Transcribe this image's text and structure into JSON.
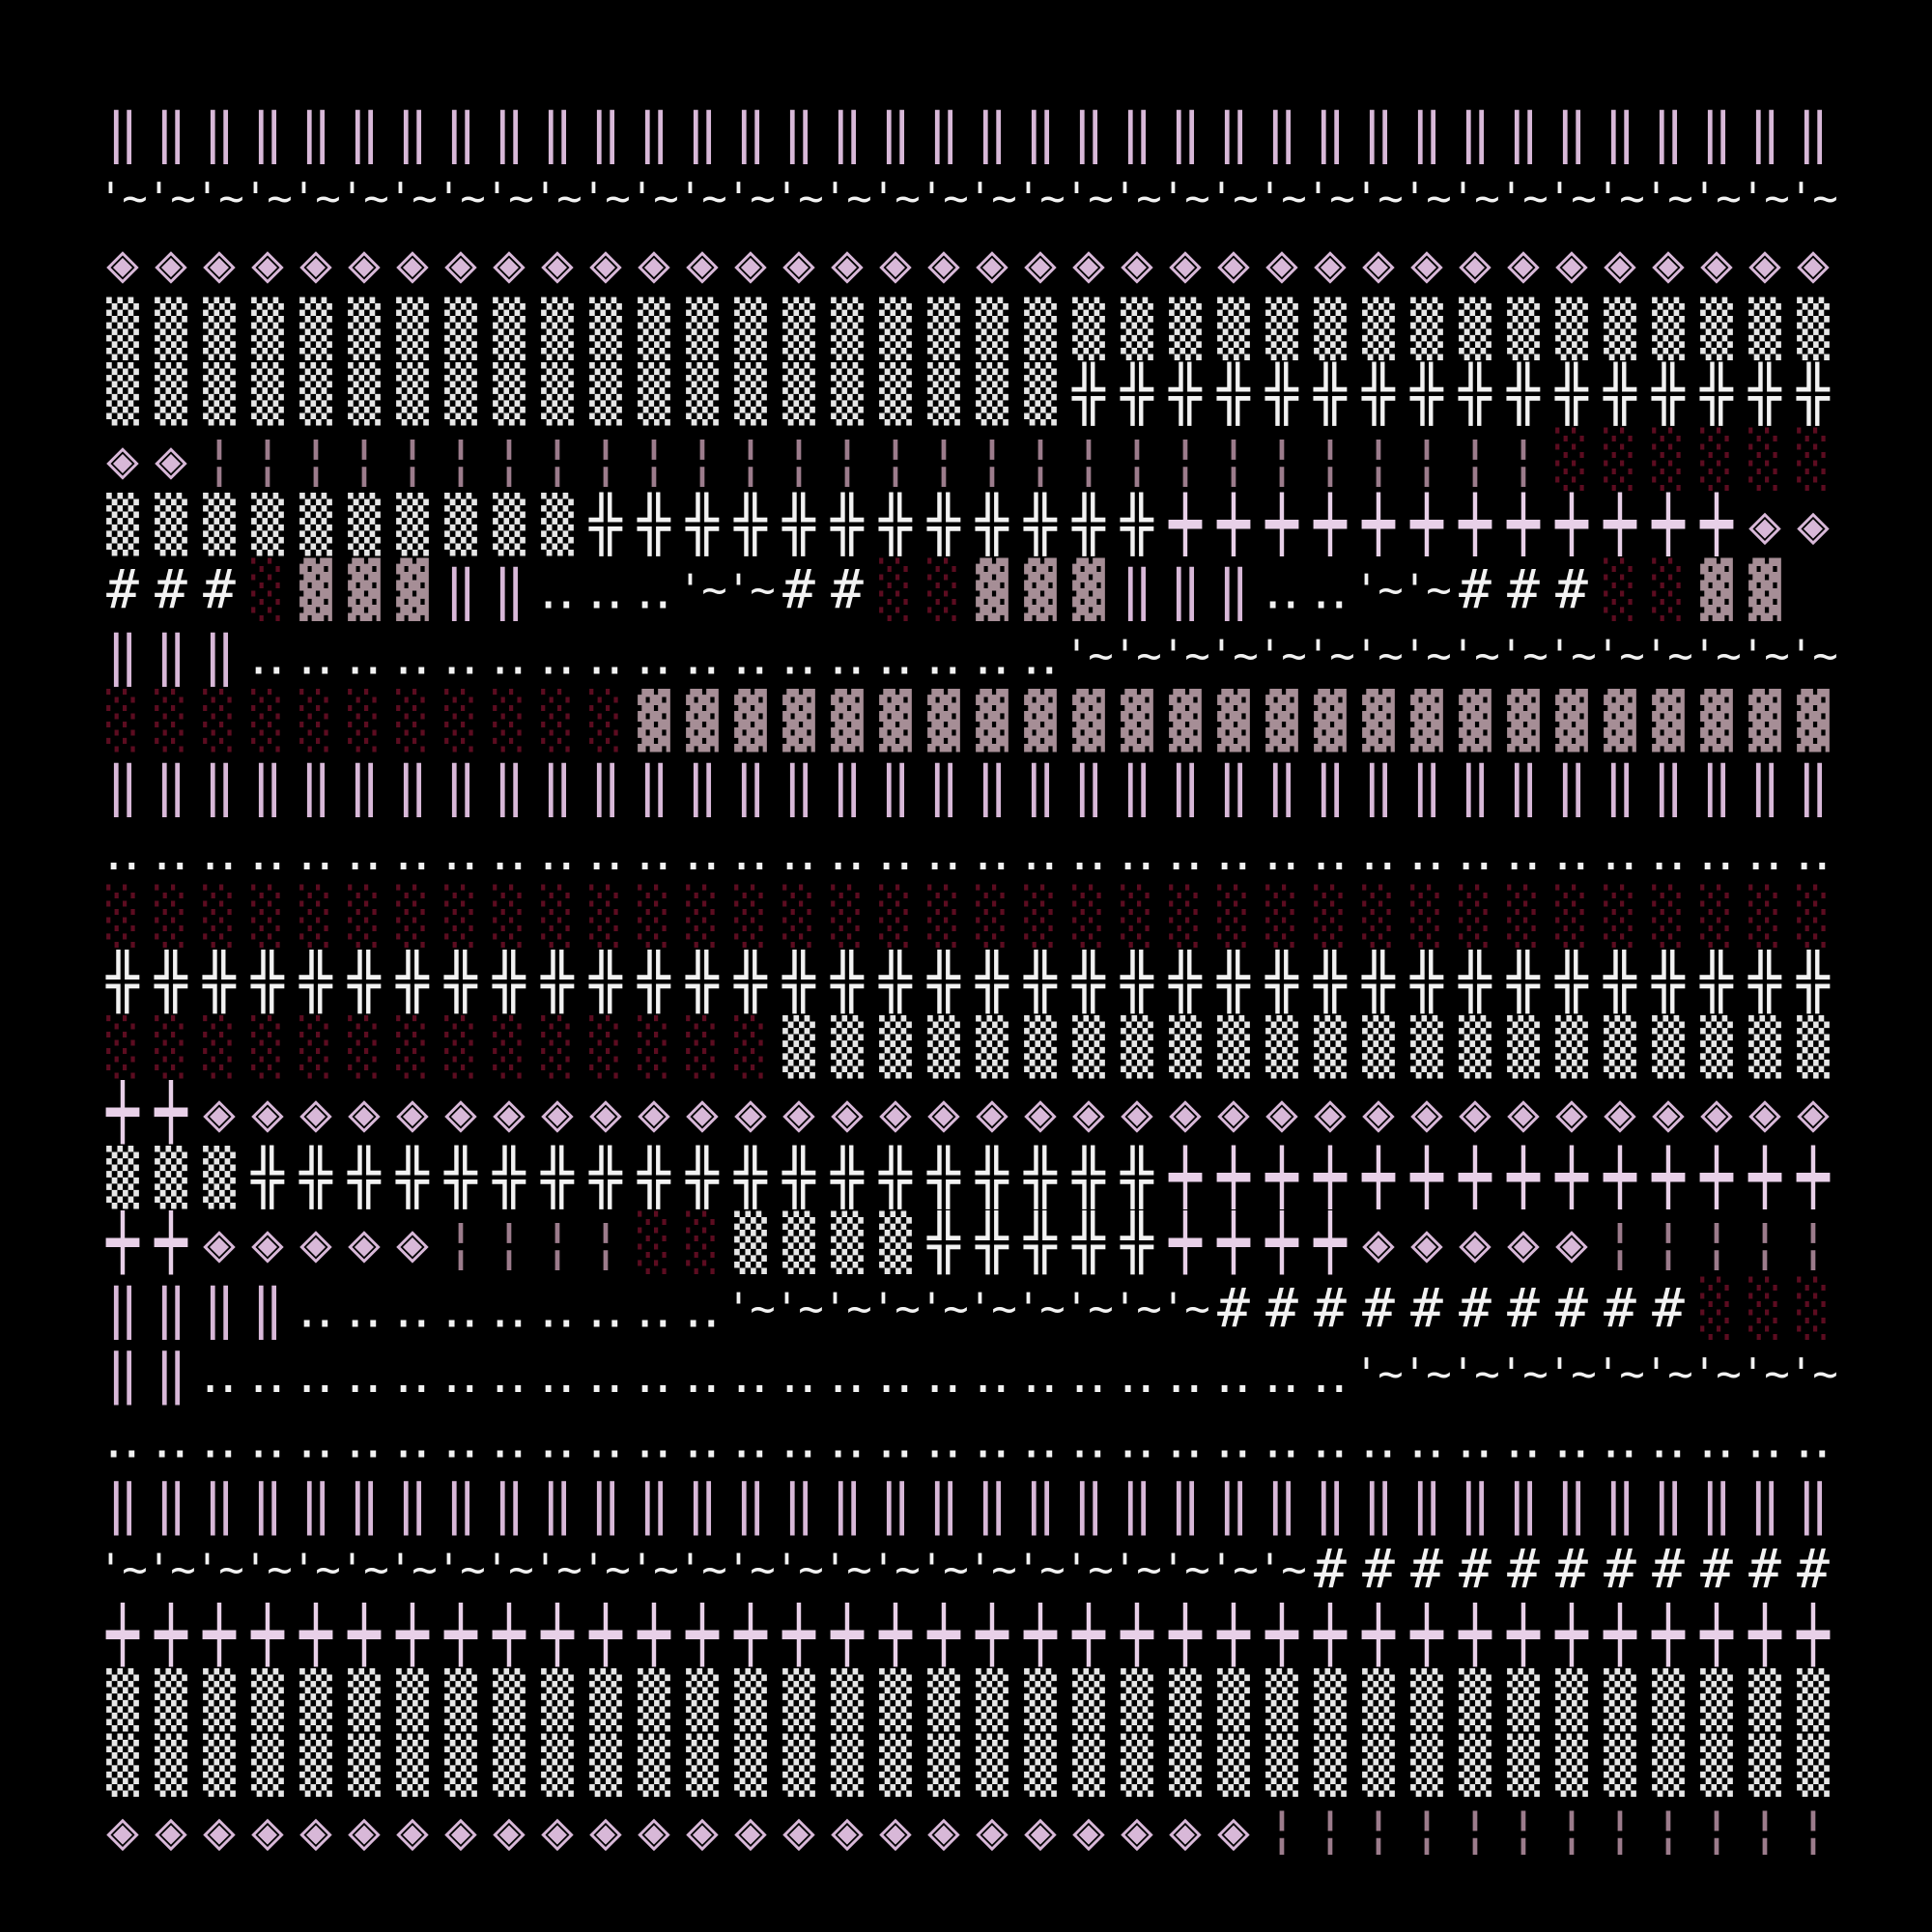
{
  "rows": [
    {
      "runs": [
        {
          "text": "‖‖‖‖‖‖‖‖‖‖‖‖‖‖‖‖‖‖‖‖‖‖‖‖‖‖‖‖‖‖‖‖‖‖‖‖",
          "color": "#d8b8d8"
        }
      ]
    },
    {
      "runs": [
        {
          "text": "'~'~'~'~'~'~'~'~'~'~'~'~'~'~'~'~'~'~'~'~'~'~'~'~'~'~'~'~'~'~'~'~'~'~'~'~",
          "color": "#f2f2f2"
        }
      ]
    },
    {
      "runs": [
        {
          "text": "◈◈◈◈◈◈◈◈◈◈◈◈◈◈◈◈◈◈◈◈◈◈◈◈◈◈◈◈◈◈◈◈◈◈◈◈",
          "color": "#d8b8d8"
        }
      ]
    },
    {
      "runs": [
        {
          "text": "▒▒▒▒▒▒▒▒▒▒▒▒▒▒▒▒▒▒▒▒▒▒▒▒▒▒▒▒▒▒▒▒▒▒▒▒",
          "color": "#e6e6e6"
        }
      ]
    },
    {
      "runs": [
        {
          "text": "▒▒▒▒▒▒▒▒▒▒▒▒▒▒▒▒▒▒▒▒",
          "color": "#e6e6e6"
        },
        {
          "text": "╬╬╬╬╬╬╬╬╬╬╬╬╬╬╬╬",
          "color": "#f2f2f2"
        }
      ]
    },
    {
      "runs": [
        {
          "text": "◈◈",
          "color": "#d8b8d8"
        },
        {
          "text": "¦¦¦¦¦¦¦¦¦¦¦¦¦¦¦¦¦¦¦¦¦¦¦¦¦¦¦¦",
          "color": "#9c7c8c"
        },
        {
          "text": "░░░░░░",
          "color": "#5c0c20"
        }
      ]
    },
    {
      "runs": [
        {
          "text": "▒▒▒▒▒▒▒▒▒▒",
          "color": "#e6e6e6"
        },
        {
          "text": "╬╬╬╬╬╬╬╬╬╬╬╬",
          "color": "#f2f2f2"
        },
        {
          "text": "┿┿┿┿┿┿┿┿┿┿┿┿",
          "color": "#e8d0e8"
        },
        {
          "text": "◈◈",
          "color": "#d8b8d8"
        }
      ]
    },
    {
      "runs": [
        {
          "text": "###",
          "color": "#f2f2f2"
        },
        {
          "text": "░",
          "color": "#5c0c20"
        },
        {
          "text": "▓▓▓",
          "color": "#a68e96"
        },
        {
          "text": "‖‖",
          "color": "#d8b8d8"
        },
        {
          "text": "‥‥‥",
          "color": "#f2f2f2"
        },
        {
          "text": "'~'~",
          "color": "#f2f2f2"
        },
        {
          "text": "##",
          "color": "#f2f2f2"
        },
        {
          "text": "░░",
          "color": "#5c0c20"
        },
        {
          "text": "▓▓▓",
          "color": "#a68e96"
        },
        {
          "text": "‖‖‖",
          "color": "#d8b8d8"
        },
        {
          "text": "‥‥",
          "color": "#f2f2f2"
        },
        {
          "text": "'~'~",
          "color": "#f2f2f2"
        },
        {
          "text": "###",
          "color": "#f2f2f2"
        },
        {
          "text": "░░",
          "color": "#5c0c20"
        },
        {
          "text": "▓▓",
          "color": "#a68e96"
        }
      ]
    },
    {
      "runs": [
        {
          "text": "‖‖‖",
          "color": "#d8b8d8"
        },
        {
          "text": "‥‥‥‥‥‥‥‥‥‥‥‥‥‥‥‥‥",
          "color": "#f2f2f2"
        },
        {
          "text": "'~'~'~'~'~'~'~'~'~'~'~'~'~'~'~'~",
          "color": "#f2f2f2"
        }
      ]
    },
    {
      "runs": [
        {
          "text": "░░░░░░░░░░░",
          "color": "#5c0c20"
        },
        {
          "text": "▓▓▓▓▓▓▓▓▓▓▓▓▓▓▓▓▓▓▓▓▓▓▓▓▓",
          "color": "#a68e96"
        }
      ]
    },
    {
      "runs": [
        {
          "text": "‖‖‖‖‖‖‖‖‖‖‖‖‖‖‖‖‖‖‖‖‖‖‖‖‖‖‖‖‖‖‖‖‖‖‖‖",
          "color": "#d8b8d8"
        }
      ]
    },
    {
      "runs": [
        {
          "text": "‥‥‥‥‥‥‥‥‥‥‥‥‥‥‥‥‥‥‥‥‥‥‥‥‥‥‥‥‥‥‥‥‥‥‥‥",
          "color": "#f2f2f2"
        }
      ]
    },
    {
      "runs": [
        {
          "text": "░░░░░░░░░░░░░░░░░░░░░░░░░░░░░░░░░░░░",
          "color": "#5c0c20"
        }
      ]
    },
    {
      "runs": [
        {
          "text": "╬╬╬╬╬╬╬╬╬╬╬╬╬╬╬╬╬╬╬╬╬╬╬╬╬╬╬╬╬╬╬╬╬╬╬╬",
          "color": "#f2f2f2"
        }
      ]
    },
    {
      "runs": [
        {
          "text": "░░░░░░░░░░░░░░",
          "color": "#5c0c20"
        },
        {
          "text": "▒▒▒▒▒▒▒▒▒▒▒▒▒▒▒▒▒▒▒▒▒▒",
          "color": "#e6e6e6"
        }
      ]
    },
    {
      "runs": [
        {
          "text": "┿┿",
          "color": "#e8d0e8"
        },
        {
          "text": "◈◈◈◈◈◈◈◈◈◈◈◈◈◈◈◈◈◈◈◈◈◈◈◈◈◈◈◈◈◈◈◈◈◈",
          "color": "#d8b8d8"
        }
      ]
    },
    {
      "runs": [
        {
          "text": "▒▒▒",
          "color": "#e6e6e6"
        },
        {
          "text": "╬╬╬╬╬╬╬╬╬╬╬╬╬╬╬╬╬╬╬",
          "color": "#f2f2f2"
        },
        {
          "text": "┿┿┿┿┿┿┿┿┿┿┿┿┿┿",
          "color": "#e8d0e8"
        }
      ]
    },
    {
      "runs": [
        {
          "text": "┿┿",
          "color": "#e8d0e8"
        },
        {
          "text": "◈◈◈◈◈",
          "color": "#d8b8d8"
        },
        {
          "text": "¦¦¦¦",
          "color": "#9c7c8c"
        },
        {
          "text": "░░",
          "color": "#5c0c20"
        },
        {
          "text": "▒▒▒▒",
          "color": "#e6e6e6"
        },
        {
          "text": "╬╬╬╬╬",
          "color": "#f2f2f2"
        },
        {
          "text": "┿┿┿┿",
          "color": "#e8d0e8"
        },
        {
          "text": "◈◈◈◈◈",
          "color": "#d8b8d8"
        },
        {
          "text": "¦¦¦¦¦",
          "color": "#9c7c8c"
        }
      ]
    },
    {
      "runs": [
        {
          "text": "‖‖‖‖",
          "color": "#d8b8d8"
        },
        {
          "text": "‥‥‥‥‥‥‥‥‥",
          "color": "#f2f2f2"
        },
        {
          "text": "'~'~'~'~'~'~'~'~'~'~",
          "color": "#f2f2f2"
        },
        {
          "text": "##########",
          "color": "#f2f2f2"
        },
        {
          "text": "░░░",
          "color": "#5c0c20"
        }
      ]
    },
    {
      "runs": [
        {
          "text": "‖‖",
          "color": "#d8b8d8"
        },
        {
          "text": "‥‥‥‥‥‥‥‥‥‥‥‥‥‥‥‥‥‥‥‥‥‥‥‥",
          "color": "#f2f2f2"
        },
        {
          "text": "'~'~'~'~'~'~'~'~'~'~",
          "color": "#f2f2f2"
        }
      ]
    },
    {
      "runs": [
        {
          "text": "‥‥‥‥‥‥‥‥‥‥‥‥‥‥‥‥‥‥‥‥‥‥‥‥‥‥‥‥‥‥‥‥‥‥‥‥",
          "color": "#f2f2f2"
        }
      ]
    },
    {
      "runs": [
        {
          "text": "‖‖‖‖‖‖‖‖‖‖‖‖‖‖‖‖‖‖‖‖‖‖‖‖‖‖‖‖‖‖‖‖‖‖‖‖",
          "color": "#d8b8d8"
        }
      ]
    },
    {
      "runs": [
        {
          "text": "'~'~'~'~'~'~'~'~'~'~'~'~'~'~'~'~'~'~'~'~'~'~'~'~'~",
          "color": "#f2f2f2"
        },
        {
          "text": "###########",
          "color": "#f2f2f2"
        }
      ]
    },
    {
      "runs": [
        {
          "text": "┿┿┿┿┿┿┿┿┿┿┿┿┿┿┿┿┿┿┿┿┿┿┿┿┿┿┿┿┿┿┿┿┿┿┿┿",
          "color": "#e8d0e8"
        }
      ]
    },
    {
      "runs": [
        {
          "text": "▒▒▒▒▒▒▒▒▒▒▒▒▒▒▒▒▒▒▒▒▒▒▒▒▒▒▒▒▒▒▒▒▒▒▒▒",
          "color": "#e6e6e6"
        }
      ]
    },
    {
      "runs": [
        {
          "text": "▒▒▒▒▒▒▒▒▒▒▒▒▒▒▒▒▒▒▒▒▒▒▒▒▒▒▒▒▒▒▒▒▒▒▒▒",
          "color": "#e6e6e6"
        }
      ]
    },
    {
      "runs": [
        {
          "text": "◈◈◈◈◈◈◈◈◈◈◈◈◈◈◈◈◈◈◈◈◈◈◈◈",
          "color": "#d8b8d8"
        },
        {
          "text": "¦¦¦¦¦¦¦¦¦¦¦¦",
          "color": "#9c7c8c"
        }
      ]
    }
  ]
}
